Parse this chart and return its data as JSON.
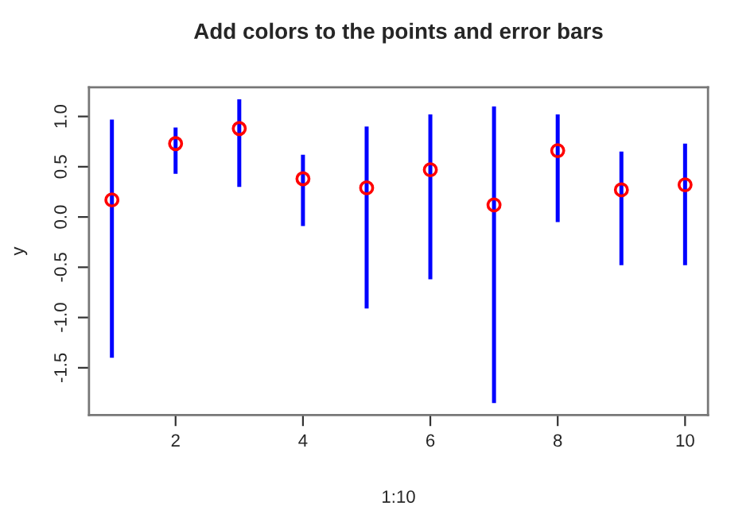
{
  "chart_data": {
    "type": "scatter",
    "title": "Add colors to the points and error bars",
    "xlabel": "1:10",
    "ylabel": "y",
    "x": [
      1,
      2,
      3,
      4,
      5,
      6,
      7,
      8,
      9,
      10
    ],
    "series": [
      {
        "color": "#ff0000",
        "values": [
          0.17,
          0.73,
          0.88,
          0.38,
          0.29,
          0.47,
          0.12,
          0.66,
          0.27,
          0.32
        ],
        "errors": [
          [
            -1.4,
            0.97
          ],
          [
            0.43,
            0.89
          ],
          [
            0.3,
            1.17
          ],
          [
            -0.09,
            0.62
          ],
          [
            -0.91,
            0.9
          ],
          [
            -0.62,
            1.02
          ],
          [
            -1.85,
            1.1
          ],
          [
            -0.05,
            1.02
          ],
          [
            -0.48,
            0.65
          ],
          [
            -0.48,
            0.73
          ]
        ]
      }
    ],
    "xlim": [
      0.64,
      10.36
    ],
    "ylim": [
      -1.97,
      1.29
    ],
    "xticks": [
      2,
      4,
      6,
      8,
      10
    ],
    "yticks": [
      -1.5,
      {
        "value": -1,
        "label": "-1.0"
      },
      -0.5,
      {
        "value": 0,
        "label": "0.0"
      },
      0.5,
      {
        "value": 1,
        "label": "1.0"
      }
    ],
    "marker": "circle",
    "grid": false,
    "legend": false
  }
}
